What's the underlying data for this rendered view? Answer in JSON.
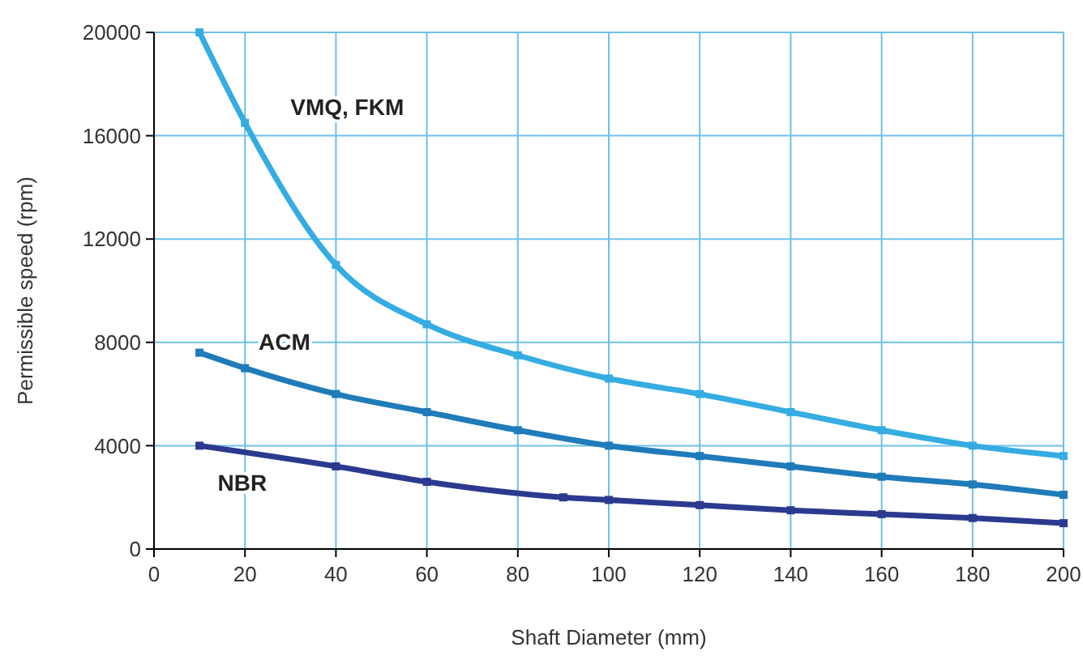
{
  "chart_data": {
    "type": "line",
    "xlabel": "Shaft Diameter (mm)",
    "ylabel": "Permissible speed (rpm)",
    "xlim": [
      0,
      200
    ],
    "xticks": [
      0,
      20,
      40,
      60,
      80,
      100,
      120,
      140,
      160,
      180,
      200
    ],
    "ylim": [
      0,
      20000
    ],
    "yticks": [
      0,
      4000,
      8000,
      12000,
      16000,
      20000
    ],
    "grid": true,
    "marker": "square",
    "line_style": "solid",
    "series": [
      {
        "name": "VMQ, FKM",
        "color": "#35ace2",
        "x": [
          10,
          20,
          40,
          60,
          80,
          100,
          120,
          140,
          160,
          180,
          200
        ],
        "values": [
          20000,
          16500,
          11000,
          8700,
          7500,
          6600,
          6000,
          5300,
          4600,
          4000,
          3600
        ]
      },
      {
        "name": "ACM",
        "color": "#1f7bb9",
        "x": [
          10,
          20,
          40,
          60,
          80,
          100,
          120,
          140,
          160,
          180,
          200
        ],
        "values": [
          7600,
          7000,
          6000,
          5300,
          4600,
          4000,
          3600,
          3200,
          2800,
          2500,
          2100
        ]
      },
      {
        "name": "NBR",
        "color": "#2b3a8f",
        "x": [
          10,
          40,
          60,
          90,
          100,
          120,
          140,
          160,
          180,
          200
        ],
        "values": [
          4000,
          3200,
          2600,
          2000,
          1900,
          1700,
          1500,
          1350,
          1200,
          1000
        ]
      }
    ]
  }
}
